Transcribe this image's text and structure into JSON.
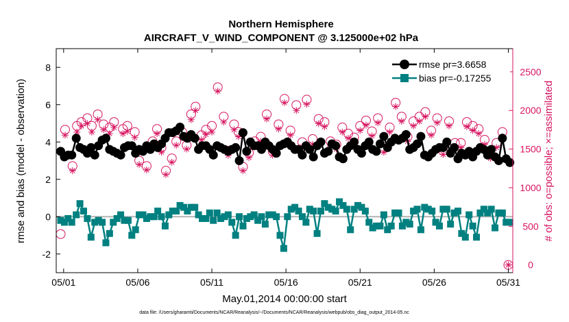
{
  "chart_data": {
    "type": "line",
    "title": "Northern Hemisphere",
    "subtitle": "AIRCRAFT_V_WIND_COMPONENT @ 3.125000e+02 hPa",
    "xlabel": "May.01,2014 00:00:00 start",
    "ylabel_left": "rmse and bias (model - observation)",
    "ylabel_right": "# of obs: o=possible; ×=assimilated",
    "xlim": [
      0.5,
      31.3
    ],
    "ylim_left": [
      -3,
      9
    ],
    "ylim_right": [
      -100,
      2800
    ],
    "x_ticks": [
      1,
      6,
      11,
      16,
      21,
      26,
      31
    ],
    "x_tick_labels": [
      "05/01",
      "05/06",
      "05/11",
      "05/16",
      "05/21",
      "05/26",
      "05/31"
    ],
    "y_ticks_left": [
      -2,
      0,
      2,
      4,
      6,
      8
    ],
    "y_ticks_right": [
      0,
      500,
      1000,
      1500,
      2000,
      2500
    ],
    "grid": false,
    "legend_position": "top-right",
    "footer": "data file: /Users/gharamti/Documents/NCAR/Reanalysis/~/Documents/NCAR/Reanalysis/webpub/obs_diag_output_2014-05.nc",
    "colors": {
      "rmse": "#000000",
      "bias": "#008080",
      "obs": "#d6145f",
      "zero_line": "#b3b3b3",
      "axis": "#000000",
      "right_axis": "#d6145f"
    },
    "series": [
      {
        "name": "rmse pr=3.6658",
        "x": [
          0.8,
          1.05,
          1.3,
          1.55,
          1.85,
          2.1,
          2.35,
          2.6,
          2.85,
          3.1,
          3.35,
          3.6,
          3.85,
          4.1,
          4.35,
          4.6,
          4.85,
          5.1,
          5.35,
          5.6,
          5.85,
          6.1,
          6.35,
          6.6,
          6.85,
          7.1,
          7.35,
          7.6,
          7.85,
          8.1,
          8.35,
          8.6,
          8.85,
          9.1,
          9.35,
          9.6,
          9.85,
          10.1,
          10.35,
          10.6,
          10.85,
          11.1,
          11.35,
          11.6,
          11.85,
          12.1,
          12.35,
          12.6,
          12.85,
          13.1,
          13.35,
          13.6,
          13.85,
          14.1,
          14.35,
          14.6,
          14.85,
          15.1,
          15.35,
          15.6,
          15.85,
          16.1,
          16.35,
          16.6,
          16.85,
          17.1,
          17.35,
          17.6,
          17.85,
          18.1,
          18.35,
          18.6,
          18.85,
          19.1,
          19.35,
          19.6,
          19.85,
          20.1,
          20.35,
          20.6,
          20.85,
          21.1,
          21.35,
          21.6,
          21.85,
          22.1,
          22.35,
          22.6,
          22.85,
          23.1,
          23.35,
          23.6,
          23.85,
          24.1,
          24.35,
          24.6,
          24.85,
          25.1,
          25.35,
          25.6,
          25.85,
          26.1,
          26.35,
          26.6,
          26.85,
          27.1,
          27.35,
          27.6,
          27.85,
          28.1,
          28.35,
          28.6,
          28.85,
          29.1,
          29.35,
          29.6,
          29.85,
          30.1,
          30.35,
          30.6,
          30.85,
          31.1
        ],
        "values": [
          3.5,
          3.2,
          3.3,
          3.3,
          4.2,
          3.7,
          3.6,
          3.4,
          3.7,
          3.3,
          3.8,
          4.1,
          4.2,
          3.6,
          3.5,
          3.4,
          3.3,
          3.7,
          3.8,
          3.8,
          3.4,
          3.6,
          3.5,
          3.8,
          3.6,
          3.9,
          3.7,
          3.9,
          4.2,
          4.5,
          4.5,
          4.6,
          4.8,
          4.3,
          4.2,
          4.4,
          4.2,
          3.6,
          3.8,
          3.8,
          3.6,
          3.3,
          3.8,
          3.7,
          3.6,
          3.5,
          3.6,
          3.7,
          3.0,
          4.5,
          3.5,
          4.0,
          3.8,
          3.8,
          3.6,
          4.0,
          3.8,
          3.6,
          3.4,
          3.8,
          3.9,
          4.0,
          3.8,
          3.6,
          3.6,
          3.3,
          3.8,
          3.6,
          3.2,
          3.8,
          4.0,
          3.4,
          3.5,
          3.9,
          3.8,
          3.2,
          3.1,
          3.6,
          3.8,
          4.0,
          3.6,
          3.4,
          3.8,
          4.0,
          3.6,
          3.5,
          3.9,
          4.3,
          3.7,
          4.0,
          4.2,
          4.1,
          4.2,
          4.4,
          3.6,
          3.7,
          3.9,
          4.3,
          3.3,
          3.2,
          3.4,
          3.6,
          3.7,
          3.7,
          4.0,
          3.4,
          3.7,
          3.1,
          3.4,
          3.3,
          3.5,
          3.2,
          3.5,
          3.7,
          3.6,
          3.3,
          3.6,
          3.2,
          3.0,
          4.2,
          3.1,
          2.9
        ],
        "color": "#000000",
        "marker": "filled-circle"
      },
      {
        "name": "bias pr=-0.17255",
        "x": [
          0.8,
          1.05,
          1.3,
          1.55,
          1.85,
          2.1,
          2.35,
          2.6,
          2.85,
          3.1,
          3.35,
          3.6,
          3.85,
          4.1,
          4.35,
          4.6,
          4.85,
          5.1,
          5.35,
          5.6,
          5.85,
          6.1,
          6.35,
          6.6,
          6.85,
          7.1,
          7.35,
          7.6,
          7.85,
          8.1,
          8.35,
          8.6,
          8.85,
          9.1,
          9.35,
          9.6,
          9.85,
          10.1,
          10.35,
          10.6,
          10.85,
          11.1,
          11.35,
          11.6,
          11.85,
          12.1,
          12.35,
          12.6,
          12.85,
          13.1,
          13.35,
          13.6,
          13.85,
          14.1,
          14.35,
          14.6,
          14.85,
          15.1,
          15.35,
          15.6,
          15.85,
          16.1,
          16.35,
          16.6,
          16.85,
          17.1,
          17.35,
          17.6,
          17.85,
          18.1,
          18.35,
          18.6,
          18.85,
          19.1,
          19.35,
          19.6,
          19.85,
          20.1,
          20.35,
          20.6,
          20.85,
          21.1,
          21.35,
          21.6,
          21.85,
          22.1,
          22.35,
          22.6,
          22.85,
          23.1,
          23.35,
          23.6,
          23.85,
          24.1,
          24.35,
          24.6,
          24.85,
          25.1,
          25.35,
          25.6,
          25.85,
          26.1,
          26.35,
          26.6,
          26.85,
          27.1,
          27.35,
          27.6,
          27.85,
          28.1,
          28.35,
          28.6,
          28.85,
          29.1,
          29.35,
          29.6,
          29.85,
          30.1,
          30.35,
          30.6,
          30.85,
          31.1
        ],
        "values": [
          -0.2,
          -0.3,
          -0.1,
          -0.3,
          0.1,
          0.7,
          0.3,
          -0.1,
          -1.1,
          -0.3,
          -0.2,
          -0.3,
          -1.4,
          -0.9,
          -0.3,
          -0.1,
          0.1,
          -0.2,
          -0.2,
          -1.0,
          -0.7,
          0.1,
          0.1,
          -0.1,
          0.0,
          0.0,
          0.3,
          0.0,
          -0.5,
          0.1,
          0.3,
          0.3,
          0.6,
          0.5,
          0.3,
          0.5,
          0.5,
          0.1,
          -0.1,
          -0.1,
          0.2,
          -0.2,
          0.2,
          -0.1,
          0.0,
          0.1,
          -0.3,
          -1.0,
          0.0,
          -0.5,
          -0.1,
          0.0,
          0.1,
          -0.2,
          0.0,
          -0.4,
          0.1,
          0.1,
          0.0,
          -1.0,
          -1.7,
          0.0,
          0.4,
          0.5,
          0.3,
          0.0,
          -0.3,
          0.4,
          0.3,
          -0.9,
          0.3,
          0.7,
          0.5,
          0.4,
          0.3,
          0.8,
          0.6,
          0.4,
          -0.7,
          0.4,
          0.6,
          0.5,
          0.3,
          -0.3,
          -0.6,
          -0.5,
          -0.5,
          0.1,
          -0.7,
          -0.5,
          0.2,
          0.2,
          -0.5,
          -0.3,
          -0.4,
          0.3,
          0.4,
          -0.7,
          0.5,
          0.4,
          0.3,
          -0.3,
          -0.5,
          0.4,
          0.4,
          -0.4,
          0.2,
          0.3,
          -0.9,
          -1.1,
          0.1,
          -0.5,
          -1.1,
          0.2,
          0.4,
          0.2,
          0.4,
          -0.6,
          0.2,
          0.2,
          -0.3,
          -0.3
        ],
        "color": "#008080",
        "marker": "filled-square"
      },
      {
        "name": "possible",
        "axis": "right",
        "marker": "circle",
        "x": [
          0.8,
          1.1,
          1.6,
          1.9,
          2.2,
          2.6,
          2.9,
          3.3,
          3.7,
          4.1,
          4.4,
          5.0,
          5.3,
          5.8,
          6.1,
          6.6,
          7.0,
          7.3,
          7.6,
          7.9,
          8.3,
          8.6,
          9.0,
          9.3,
          9.6,
          9.9,
          10.3,
          10.6,
          11.0,
          11.4,
          11.8,
          12.1,
          12.5,
          12.8,
          13.1,
          13.5,
          13.9,
          14.3,
          14.7,
          15.1,
          15.5,
          15.9,
          16.3,
          16.7,
          17.1,
          17.4,
          17.8,
          18.2,
          18.6,
          19.0,
          19.4,
          19.8,
          20.2,
          20.6,
          21.0,
          21.4,
          21.8,
          22.2,
          22.6,
          23.0,
          23.4,
          23.8,
          24.2,
          24.6,
          25.0,
          25.4,
          25.8,
          26.2,
          26.6,
          27.0,
          27.4,
          27.8,
          28.2,
          28.6,
          29.0,
          29.4,
          29.8,
          30.2,
          30.6,
          31.0
        ],
        "values": [
          400,
          1750,
          1280,
          1800,
          1850,
          1900,
          1800,
          1950,
          1820,
          1780,
          1850,
          1760,
          1800,
          1720,
          1350,
          1280,
          1600,
          1760,
          1520,
          1220,
          1380,
          1600,
          1720,
          1550,
          1950,
          2050,
          1680,
          1750,
          1800,
          2300,
          1920,
          1480,
          1820,
          1720,
          1270,
          1450,
          1600,
          1660,
          1950,
          1470,
          1820,
          2150,
          1740,
          2070,
          1590,
          2140,
          1630,
          1890,
          1850,
          1600,
          1560,
          1780,
          1700,
          1650,
          1800,
          1870,
          1730,
          1900,
          1510,
          1780,
          2100,
          1920,
          1660,
          1860,
          1920,
          1980,
          1740,
          1900,
          1480,
          1860,
          1580,
          1580,
          1850,
          1800,
          1760,
          1620,
          1430,
          1580,
          1720,
          0
        ]
      },
      {
        "name": "assimilated",
        "axis": "right",
        "marker": "x",
        "x": [
          0.8,
          1.1,
          1.6,
          1.9,
          2.2,
          2.6,
          2.9,
          3.3,
          3.7,
          4.1,
          4.4,
          5.0,
          5.3,
          5.8,
          6.1,
          6.6,
          7.0,
          7.3,
          7.6,
          7.9,
          8.3,
          8.6,
          9.0,
          9.3,
          9.6,
          9.9,
          10.3,
          10.6,
          11.0,
          11.4,
          11.8,
          12.1,
          12.5,
          12.8,
          13.1,
          13.5,
          13.9,
          14.3,
          14.7,
          15.1,
          15.5,
          15.9,
          16.3,
          16.7,
          17.1,
          17.4,
          17.8,
          18.2,
          18.6,
          19.0,
          19.4,
          19.8,
          20.2,
          20.6,
          21.0,
          21.4,
          21.8,
          22.2,
          22.6,
          23.0,
          23.4,
          23.8,
          24.2,
          24.6,
          25.0,
          25.4,
          25.8,
          26.2,
          26.6,
          27.0,
          27.4,
          27.8,
          28.2,
          28.6,
          29.0,
          29.4,
          29.8,
          30.2,
          30.6,
          31.0
        ],
        "values": [
          1450,
          1680,
          1220,
          1720,
          1800,
          1830,
          1720,
          1880,
          1750,
          1700,
          1780,
          1700,
          1730,
          1650,
          1300,
          1230,
          1550,
          1700,
          1460,
          1170,
          1330,
          1550,
          1650,
          1500,
          1880,
          2000,
          1620,
          1690,
          1720,
          2250,
          1850,
          1420,
          1750,
          1660,
          1220,
          1390,
          1550,
          1600,
          1890,
          1420,
          1760,
          2100,
          1680,
          2000,
          1530,
          2080,
          1560,
          1830,
          1790,
          1540,
          1500,
          1720,
          1640,
          1600,
          1740,
          1810,
          1670,
          1840,
          1460,
          1720,
          2050,
          1860,
          1600,
          1800,
          1860,
          1920,
          1680,
          1840,
          1430,
          1800,
          1520,
          1520,
          1790,
          1740,
          1700,
          1560,
          1380,
          1520,
          1660,
          0
        ]
      }
    ]
  }
}
